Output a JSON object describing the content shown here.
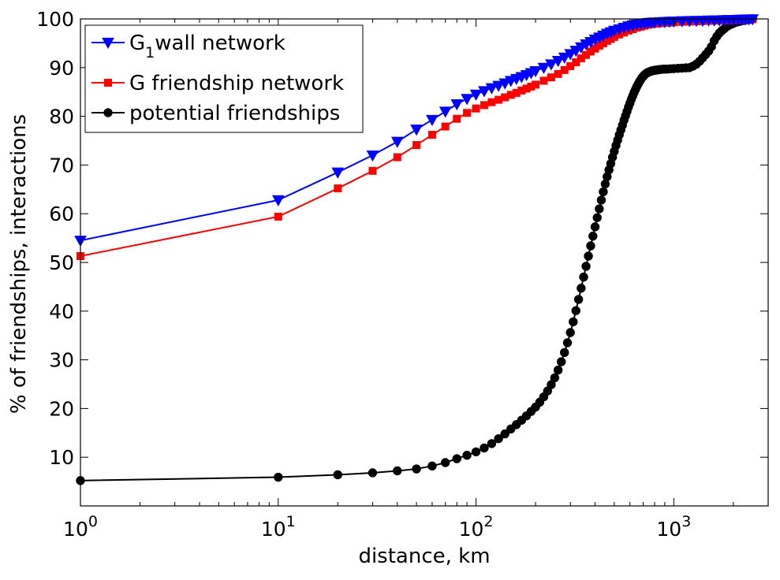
{
  "chart_data": {
    "type": "line",
    "x_scale": "log",
    "xlabel": "distance, km",
    "ylabel": "% of friendships, interactions",
    "xlim": [
      1,
      3000
    ],
    "ylim": [
      0,
      100
    ],
    "xticks": [
      {
        "value": 1,
        "base": "10",
        "exp": "0"
      },
      {
        "value": 10,
        "base": "10",
        "exp": "1"
      },
      {
        "value": 100,
        "base": "10",
        "exp": "2"
      },
      {
        "value": 1000,
        "base": "10",
        "exp": "3"
      }
    ],
    "yticks": [
      10,
      20,
      30,
      40,
      50,
      60,
      70,
      80,
      90,
      100
    ],
    "legend_position": "top-left",
    "series": [
      {
        "name": "G",
        "name_subscript": "1",
        "name_suffix": "wall network",
        "color": "#0000ff",
        "marker": "triangle-down",
        "x": [
          1,
          10,
          20,
          30,
          40,
          50,
          60,
          70,
          80,
          90,
          100,
          110,
          120,
          130,
          140,
          150,
          160,
          170,
          180,
          190,
          200,
          220,
          240,
          260,
          280,
          300,
          320,
          340,
          360,
          380,
          400,
          420,
          440,
          460,
          480,
          500,
          530,
          560,
          590,
          620,
          650,
          680,
          710,
          740,
          770,
          800,
          850,
          900,
          950,
          1000,
          1100,
          1200,
          1300,
          1400,
          1500,
          1600,
          1700,
          1800,
          1900,
          2000,
          2100,
          2200,
          2300,
          2400,
          2500
        ],
        "y": [
          54.5,
          62.8,
          68.5,
          72.0,
          74.8,
          77.3,
          79.3,
          81.0,
          82.5,
          83.6,
          84.5,
          85.2,
          85.8,
          86.3,
          86.8,
          87.3,
          87.7,
          88.1,
          88.5,
          88.9,
          89.3,
          90.0,
          90.7,
          91.4,
          92.1,
          92.8,
          93.5,
          94.2,
          94.8,
          95.3,
          95.8,
          96.2,
          96.6,
          97.0,
          97.3,
          97.6,
          97.9,
          98.2,
          98.5,
          98.7,
          98.9,
          99.0,
          99.1,
          99.2,
          99.25,
          99.3,
          99.35,
          99.4,
          99.45,
          99.5,
          99.55,
          99.6,
          99.62,
          99.65,
          99.7,
          99.72,
          99.75,
          99.78,
          99.8,
          99.82,
          99.85,
          99.88,
          99.9,
          99.93,
          99.95
        ]
      },
      {
        "name": "G friendship network",
        "color": "#ff0000",
        "marker": "square",
        "x": [
          1,
          10,
          20,
          30,
          40,
          50,
          60,
          70,
          80,
          90,
          100,
          110,
          120,
          130,
          140,
          150,
          160,
          170,
          180,
          190,
          200,
          220,
          240,
          260,
          280,
          300,
          320,
          340,
          360,
          380,
          400,
          420,
          440,
          460,
          480,
          500,
          530,
          560,
          590,
          620,
          650,
          680,
          710,
          740,
          770,
          800,
          850,
          900,
          950,
          1000,
          1100,
          1200,
          1300,
          1400,
          1500,
          1600,
          1700,
          1800,
          1900,
          2000,
          2100,
          2200,
          2300,
          2400,
          2500
        ],
        "y": [
          51.3,
          59.4,
          65.2,
          68.8,
          71.6,
          74.1,
          76.2,
          77.9,
          79.5,
          80.7,
          81.6,
          82.3,
          82.9,
          83.4,
          83.9,
          84.4,
          84.8,
          85.3,
          85.7,
          86.1,
          86.5,
          87.3,
          88.0,
          88.7,
          89.5,
          90.3,
          91.1,
          91.9,
          92.6,
          93.3,
          93.9,
          94.5,
          95.0,
          95.5,
          95.9,
          96.3,
          96.8,
          97.2,
          97.6,
          97.9,
          98.2,
          98.4,
          98.6,
          98.8,
          98.9,
          99.0,
          99.1,
          99.2,
          99.25,
          99.3,
          99.4,
          99.45,
          99.5,
          99.55,
          99.6,
          99.65,
          99.7,
          99.72,
          99.75,
          99.78,
          99.8,
          99.83,
          99.86,
          99.9,
          99.93
        ]
      },
      {
        "name": "potential friendships",
        "color": "#000000",
        "marker": "circle",
        "x": [
          1,
          10,
          20,
          30,
          40,
          50,
          60,
          70,
          80,
          90,
          100,
          110,
          120,
          130,
          140,
          150,
          160,
          170,
          180,
          190,
          200,
          210,
          220,
          230,
          240,
          250,
          260,
          270,
          280,
          290,
          300,
          310,
          320,
          330,
          340,
          350,
          360,
          370,
          380,
          390,
          400,
          410,
          420,
          430,
          440,
          450,
          460,
          470,
          480,
          490,
          500,
          510,
          520,
          530,
          540,
          550,
          560,
          570,
          580,
          590,
          600,
          610,
          620,
          630,
          640,
          650,
          660,
          670,
          680,
          690,
          700,
          710,
          720,
          730,
          740,
          750,
          760,
          770,
          780,
          790,
          800,
          810,
          820,
          830,
          840,
          850,
          870,
          890,
          910,
          930,
          960,
          1000,
          1050,
          1100,
          1150,
          1200,
          1250,
          1300,
          1350,
          1400,
          1450,
          1500,
          1550,
          1600,
          1650,
          1700,
          1750,
          1800,
          1850,
          1900,
          1950,
          2000,
          2050,
          2100,
          2150,
          2200,
          2250,
          2300,
          2350,
          2400,
          2450,
          2500
        ],
        "y": [
          5.2,
          5.9,
          6.4,
          6.8,
          7.2,
          7.6,
          8.2,
          8.9,
          9.7,
          10.4,
          11.1,
          11.9,
          12.8,
          13.8,
          14.8,
          15.8,
          16.7,
          17.6,
          18.5,
          19.4,
          20.3,
          21.3,
          22.4,
          23.6,
          24.9,
          26.3,
          27.9,
          29.6,
          31.5,
          33.5,
          35.6,
          37.8,
          40.1,
          42.4,
          44.7,
          47.0,
          49.2,
          51.3,
          53.4,
          55.4,
          57.3,
          59.2,
          61.0,
          62.8,
          64.5,
          66.1,
          67.6,
          69.0,
          70.3,
          71.6,
          72.8,
          74.0,
          75.1,
          76.2,
          77.2,
          78.2,
          79.2,
          80.1,
          81.0,
          81.9,
          82.7,
          83.5,
          84.2,
          84.9,
          85.5,
          86.1,
          86.6,
          87.1,
          87.5,
          87.9,
          88.2,
          88.5,
          88.7,
          88.9,
          89.0,
          89.1,
          89.2,
          89.3,
          89.35,
          89.4,
          89.45,
          89.5,
          89.5,
          89.55,
          89.6,
          89.6,
          89.65,
          89.7,
          89.7,
          89.7,
          89.75,
          89.8,
          89.85,
          89.9,
          89.95,
          90.0,
          90.3,
          90.7,
          91.3,
          92.0,
          92.7,
          93.4,
          94.3,
          95.5,
          96.4,
          97.1,
          97.6,
          98.0,
          98.4,
          98.7,
          98.9,
          99.1,
          99.3,
          99.4,
          99.5,
          99.6,
          99.7,
          99.8,
          99.85,
          99.9,
          99.95,
          100.0
        ]
      }
    ]
  }
}
